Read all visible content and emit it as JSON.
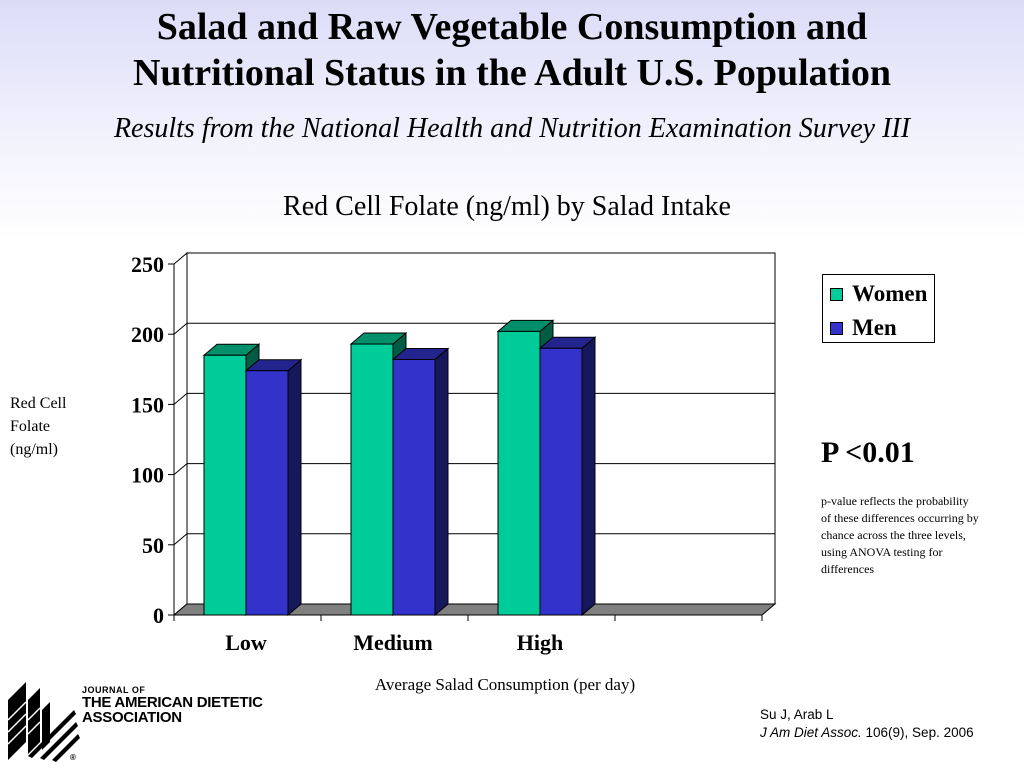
{
  "slide": {
    "title_line1": "Salad and Raw Vegetable Consumption and",
    "title_line2": "Nutritional Status in the Adult U.S. Population",
    "subtitle": "Results from the National Health and Nutrition Examination Survey III"
  },
  "chart_data": {
    "type": "bar",
    "title": "Red Cell Folate (ng/ml) by Salad Intake",
    "xlabel": "Average Salad Consumption (per day)",
    "ylabel": "Red Cell Folate (ng/ml)",
    "categories": [
      "Low",
      "Medium",
      "High"
    ],
    "series": [
      {
        "name": "Women",
        "values": [
          185,
          193,
          202
        ],
        "color": "#00cc99"
      },
      {
        "name": "Men",
        "values": [
          174,
          182,
          190
        ],
        "color": "#3333cc"
      }
    ],
    "ylim": [
      0,
      250
    ],
    "yticks": [
      "0",
      "50",
      "100",
      "150",
      "200",
      "250"
    ],
    "grid": true,
    "legend": "top-right",
    "style": "3d"
  },
  "annotation": {
    "p_value": "P <0.01",
    "note": "p-value reflects the probability of these differences occurring by chance across the three levels, using ANOVA testing for differences"
  },
  "logo": {
    "icon": "adamerican-dietetic-association-logo",
    "line1": "JOURNAL OF",
    "line2": "THE AMERICAN DIETETIC",
    "line3": "ASSOCIATION",
    "mark": "®"
  },
  "citation": {
    "authors": "Su J, Arab L",
    "journal": "J Am Diet Assoc.",
    "details": " 106(9), Sep. 2006"
  }
}
